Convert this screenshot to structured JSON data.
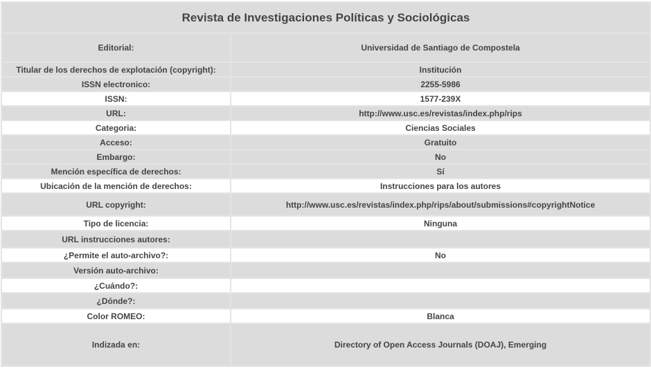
{
  "title": "Revista de Investigaciones Políticas y Sociológicas",
  "rows": [
    {
      "label": "Editorial:",
      "value": "Universidad de Santiago de Compostela"
    },
    {
      "label": "Titular de los derechos de explotación (copyright):",
      "value": "Institución"
    },
    {
      "label": "ISSN electronico:",
      "value": "2255-5986"
    },
    {
      "label": "ISSN:",
      "value": "1577-239X"
    },
    {
      "label": "URL:",
      "value": "http://www.usc.es/revistas/index.php/rips"
    },
    {
      "label": "Categoria:",
      "value": "Ciencias Sociales"
    },
    {
      "label": "Acceso:",
      "value": "Gratuito"
    },
    {
      "label": "Embargo:",
      "value": "No"
    },
    {
      "label": "Mención específica de derechos:",
      "value": "Sí"
    },
    {
      "label": "Ubicación de la mención de derechos:",
      "value": "Instrucciones para los autores"
    },
    {
      "label": "URL copyright:",
      "value": "http://www.usc.es/revistas/index.php/rips/about/submissions#copyrightNotice"
    },
    {
      "label": "Tipo de licencia:",
      "value": "Ninguna"
    },
    {
      "label": "URL instrucciones autores:",
      "value": ""
    },
    {
      "label": "¿Permite el auto-archivo?:",
      "value": "No"
    },
    {
      "label": "Versión auto-archivo:",
      "value": ""
    },
    {
      "label": "¿Cuándo?:",
      "value": ""
    },
    {
      "label": "¿Dónde?:",
      "value": ""
    },
    {
      "label": "Color ROMEO:",
      "value": "Blanca"
    },
    {
      "label": "Indizada en:",
      "value": "Directory of Open Access Journals (DOAJ), Emerging"
    }
  ]
}
